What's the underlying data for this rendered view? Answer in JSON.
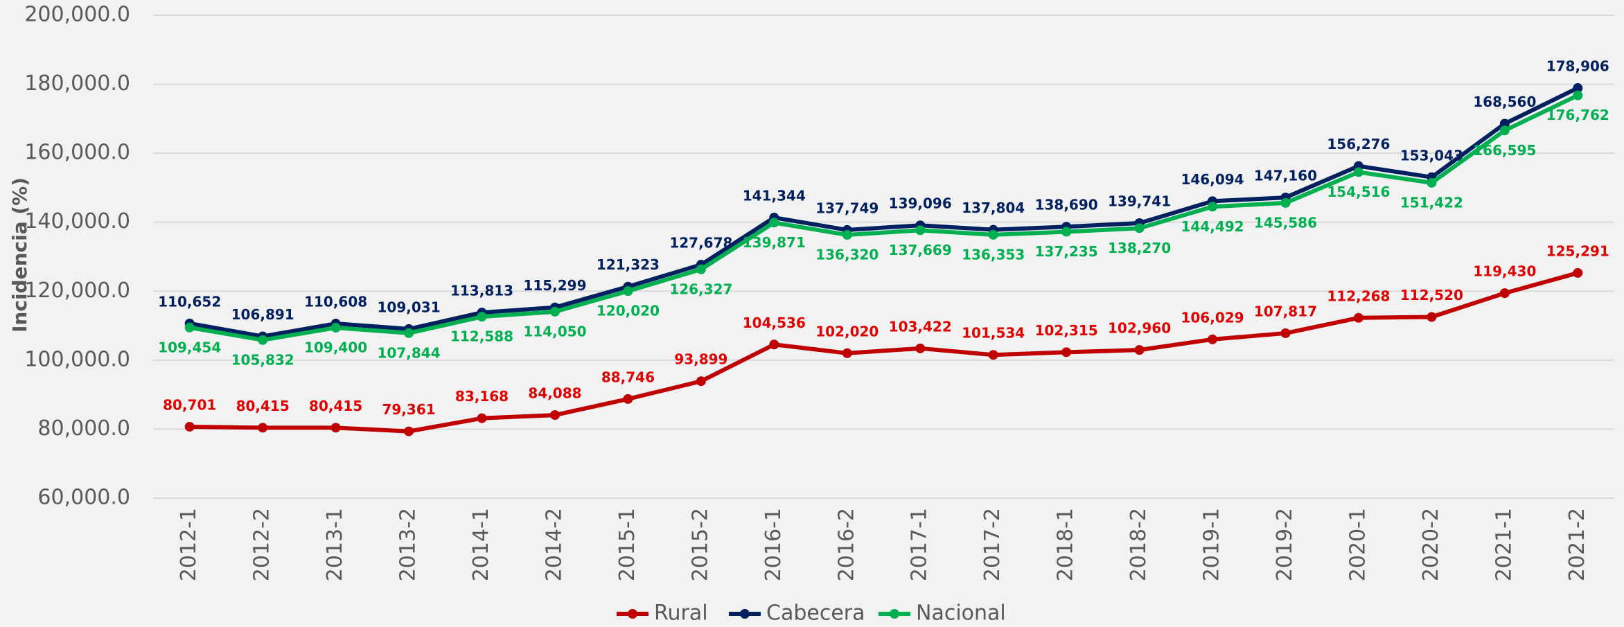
{
  "chart_data": {
    "type": "line",
    "y_label": "Incidencia (%)",
    "categories": [
      "2012-1",
      "2012-2",
      "2013-1",
      "2013-2",
      "2014-1",
      "2014-2",
      "2015-1",
      "2015-2",
      "2016-1",
      "2016-2",
      "2017-1",
      "2017-2",
      "2018-1",
      "2018-2",
      "2019-1",
      "2019-2",
      "2020-1",
      "2020-2",
      "2021-1",
      "2021-2"
    ],
    "series": [
      {
        "name": "Rural",
        "color": "#c00000",
        "label_color": "#e00000",
        "label_position": "above",
        "values": [
          80701,
          80415,
          80415,
          79361,
          83168,
          84088,
          88746,
          93899,
          104536,
          102020,
          103422,
          101534,
          102315,
          102960,
          106029,
          107817,
          112268,
          112520,
          119430,
          125291
        ],
        "value_labels": [
          "80,701",
          "80,415",
          "80,415",
          "79,361",
          "83,168",
          "84,088",
          "88,746",
          "93,899",
          "104,536",
          "102,020",
          "103,422",
          "101,534",
          "102,315",
          "102,960",
          "106,029",
          "107,817",
          "112,268",
          "112,520",
          "119,430",
          "125,291"
        ]
      },
      {
        "name": "Cabecera",
        "color": "#002060",
        "label_color": "#002060",
        "label_position": "above",
        "values": [
          110652,
          106891,
          110608,
          109031,
          113813,
          115299,
          121323,
          127678,
          141344,
          137749,
          139096,
          137804,
          138690,
          139741,
          146094,
          147160,
          156276,
          153043,
          168560,
          178906
        ],
        "value_labels": [
          "110,652",
          "106,891",
          "110,608",
          "109,031",
          "113,813",
          "115,299",
          "121,323",
          "127,678",
          "141,344",
          "137,749",
          "139,096",
          "137,804",
          "138,690",
          "139,741",
          "146,094",
          "147,160",
          "156,276",
          "153,043",
          "168,560",
          "178,906"
        ]
      },
      {
        "name": "Nacional",
        "color": "#00b050",
        "label_color": "#00b050",
        "label_position": "below",
        "values": [
          109454,
          105832,
          109400,
          107844,
          112588,
          114050,
          120020,
          126327,
          139871,
          136320,
          137669,
          136353,
          137235,
          138270,
          144492,
          145586,
          154516,
          151422,
          166595,
          176762
        ],
        "value_labels": [
          "109,454",
          "105,832",
          "109,400",
          "107,844",
          "112,588",
          "114,050",
          "120,020",
          "126,327",
          "139,871",
          "136,320",
          "137,669",
          "136,353",
          "137,235",
          "138,270",
          "144,492",
          "145,586",
          "154,516",
          "151,422",
          "166,595",
          "176,762"
        ]
      }
    ],
    "ylim": [
      60000,
      200000
    ],
    "yticks": [
      {
        "value": 60000,
        "label": "60,000.0"
      },
      {
        "value": 80000,
        "label": "80,000.0"
      },
      {
        "value": 100000,
        "label": "100,000.0"
      },
      {
        "value": 120000,
        "label": "120,000.0"
      },
      {
        "value": 140000,
        "label": "140,000.0"
      },
      {
        "value": 160000,
        "label": "160,000.0"
      },
      {
        "value": 180000,
        "label": "180,000.0"
      },
      {
        "value": 200000,
        "label": "200,000.0"
      }
    ],
    "grid": true,
    "legend": "bottom"
  }
}
